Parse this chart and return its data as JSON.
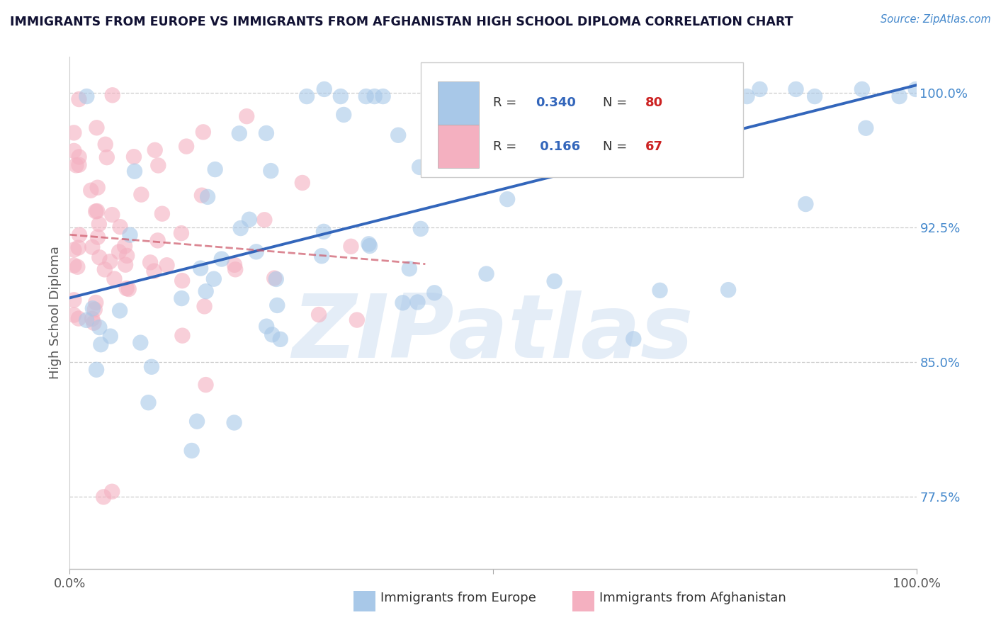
{
  "title": "IMMIGRANTS FROM EUROPE VS IMMIGRANTS FROM AFGHANISTAN HIGH SCHOOL DIPLOMA CORRELATION CHART",
  "source_text": "Source: ZipAtlas.com",
  "ylabel": "High School Diploma",
  "europe_R": 0.34,
  "europe_N": 80,
  "afghanistan_R": 0.166,
  "afghanistan_N": 67,
  "europe_color": "#a8c8e8",
  "afghanistan_color": "#f4b0c0",
  "europe_line_color": "#3366bb",
  "afghanistan_line_color": "#cc5566",
  "watermark_color": "#c5d8ee",
  "title_color": "#111133",
  "source_color": "#4488cc",
  "legend_R_color": "#3366bb",
  "legend_N_color": "#3366bb",
  "bg_color": "#ffffff",
  "xlim": [
    0.0,
    1.0
  ],
  "ylim": [
    0.735,
    1.02
  ],
  "ytick_vals": [
    0.775,
    0.85,
    0.925,
    1.0
  ],
  "ytick_labels": [
    "77.5%",
    "85.0%",
    "92.5%",
    "100.0%"
  ]
}
